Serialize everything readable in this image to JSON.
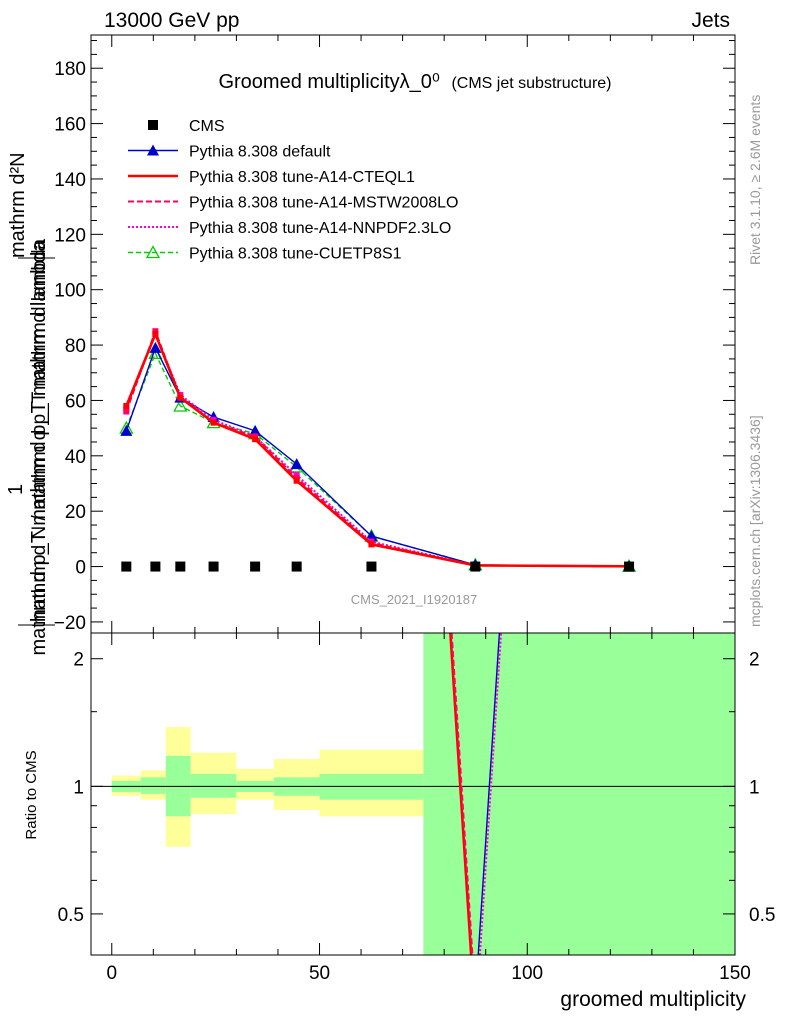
{
  "header": {
    "left": "13000 GeV pp",
    "right": "Jets"
  },
  "side_labels": {
    "rivet": "Rivet 3.1.10, ≥ 2.6M events",
    "mcplots": "mcplots.cern.ch [arXiv:1306.3436]"
  },
  "colors": {
    "cms": "#000000",
    "default": "#0000cc",
    "a14_cteql1": "#ff0000",
    "a14_mstw": "#ff0066",
    "a14_nnpdf": "#ff00cc",
    "cuetp8s1": "#00cc00",
    "band_inner": "#99ff99",
    "band_outer": "#ffff99"
  },
  "chart_data": [
    {
      "panel": "main",
      "type": "line",
      "title": "Groomed multiplicityλ_0⁰",
      "subtitle": "(CMS jet substructure)",
      "watermark": "CMS_2021_I1920187",
      "ylabel_top": "mathrm d²N",
      "ylabel_mid": "mathrm d p_T mathrm d p_T mathrm d lambda",
      "ylabel_one": "1",
      "ylabel_bottom": "mathrm d N / mathrm d p_T mathrm d lambda",
      "xlim": [
        -5,
        150
      ],
      "ylim": [
        -24,
        192
      ],
      "yticks": [
        -20,
        0,
        20,
        40,
        60,
        80,
        100,
        120,
        140,
        160,
        180
      ],
      "legend_position": "top-left",
      "x": [
        3.5,
        10.5,
        16.5,
        24.5,
        34.5,
        44.5,
        62.5,
        87.5,
        124.5
      ],
      "series": [
        {
          "name": "CMS",
          "key": "cms",
          "style": "marker-square",
          "values": [
            0,
            0,
            0,
            0,
            0,
            0,
            0,
            0,
            0
          ]
        },
        {
          "name": "Pythia 8.308 default",
          "key": "default",
          "style": "solid-triangle",
          "values": [
            49,
            79,
            61,
            54,
            49,
            37,
            11,
            0.6,
            0.1
          ]
        },
        {
          "name": "Pythia 8.308 tune-A14-CTEQL1",
          "key": "a14_cteql1",
          "style": "solid-thick",
          "values": [
            58,
            84,
            61,
            52,
            46,
            31,
            8,
            0.4,
            0.1
          ]
        },
        {
          "name": "Pythia 8.308 tune-A14-MSTW2008LO",
          "key": "a14_mstw",
          "style": "dashed",
          "values": [
            56,
            85,
            61,
            52,
            47,
            32,
            8.5,
            0.4,
            0.1
          ]
        },
        {
          "name": "Pythia 8.308 tune-A14-NNPDF2.3LO",
          "key": "a14_nnpdf",
          "style": "dotted",
          "values": [
            57,
            84,
            62,
            53,
            47,
            33,
            9,
            0.45,
            0.1
          ]
        },
        {
          "name": "Pythia 8.308 tune-CUETP8S1",
          "key": "cuetp8s1",
          "style": "dashed-open-triangle",
          "values": [
            50,
            77,
            58,
            52,
            48,
            36,
            11,
            0.6,
            0.1
          ]
        }
      ]
    },
    {
      "panel": "ratio",
      "type": "line",
      "ylabel": "Ratio to CMS",
      "xlabel": "groomed multiplicity",
      "xlim": [
        -5,
        150
      ],
      "ylim": [
        0.4,
        2.3
      ],
      "ylog": true,
      "yticks": [
        0.5,
        1,
        2
      ],
      "xticks": [
        0,
        50,
        100,
        150
      ],
      "bins": [
        {
          "lo": 0,
          "hi": 7,
          "inner": [
            0.97,
            1.03
          ],
          "outer": [
            0.95,
            1.06
          ]
        },
        {
          "lo": 7,
          "hi": 13,
          "inner": [
            0.96,
            1.05
          ],
          "outer": [
            0.93,
            1.09
          ]
        },
        {
          "lo": 13,
          "hi": 19,
          "inner": [
            0.85,
            1.18
          ],
          "outer": [
            0.72,
            1.38
          ]
        },
        {
          "lo": 19,
          "hi": 30,
          "inner": [
            0.94,
            1.07
          ],
          "outer": [
            0.86,
            1.2
          ]
        },
        {
          "lo": 30,
          "hi": 39,
          "inner": [
            0.97,
            1.03
          ],
          "outer": [
            0.93,
            1.1
          ]
        },
        {
          "lo": 39,
          "hi": 50,
          "inner": [
            0.95,
            1.05
          ],
          "outer": [
            0.88,
            1.16
          ]
        },
        {
          "lo": 50,
          "hi": 75,
          "inner": [
            0.93,
            1.07
          ],
          "outer": [
            0.85,
            1.22
          ]
        },
        {
          "lo": 75,
          "hi": 150,
          "inner": [
            0.35,
            2.5
          ],
          "outer": [
            0.35,
            2.5
          ]
        }
      ],
      "lines": [
        {
          "key": "a14_cteql1",
          "x": [
            81.5,
            86.5
          ],
          "values": [
            2.5,
            0.35
          ]
        },
        {
          "key": "a14_mstw",
          "x": [
            81.8,
            86.8
          ],
          "values": [
            2.5,
            0.35
          ]
        },
        {
          "key": "default",
          "x": [
            88.2,
            93.3
          ],
          "values": [
            0.35,
            2.5
          ]
        },
        {
          "key": "a14_nnpdf",
          "x": [
            88.6,
            93.7
          ],
          "values": [
            0.35,
            2.5
          ]
        }
      ]
    }
  ]
}
